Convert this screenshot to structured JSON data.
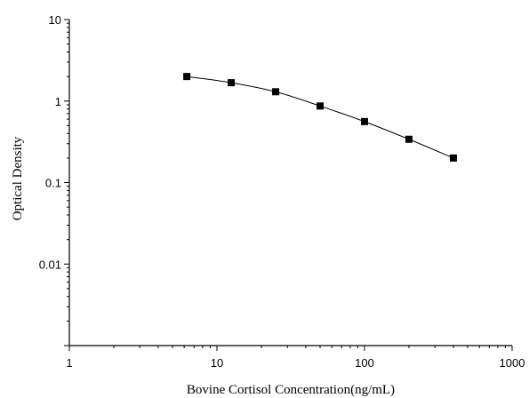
{
  "chart_data": {
    "type": "scatter",
    "title": "",
    "xlabel": "Bovine Cortisol Concentration(ng/mL)",
    "ylabel": "Optical Density",
    "x_scale": "log",
    "y_scale": "log",
    "xlim": [
      1,
      1000
    ],
    "ylim": [
      0.001,
      10
    ],
    "x_ticks": [
      1,
      10,
      100,
      1000
    ],
    "x_tick_labels": [
      "1",
      "10",
      "100",
      "1000"
    ],
    "y_ticks": [
      0.01,
      0.1,
      1,
      10
    ],
    "y_tick_labels": [
      "0.01",
      "0.1",
      "1",
      "10"
    ],
    "grid": false,
    "legend": "none",
    "colors": {
      "marker": "#000000",
      "line": "#000000"
    },
    "series": [
      {
        "x": [
          6.25,
          12.5,
          25,
          50,
          100,
          200,
          400
        ],
        "y": [
          2.0,
          1.68,
          1.3,
          0.87,
          0.56,
          0.34,
          0.2
        ]
      }
    ]
  }
}
